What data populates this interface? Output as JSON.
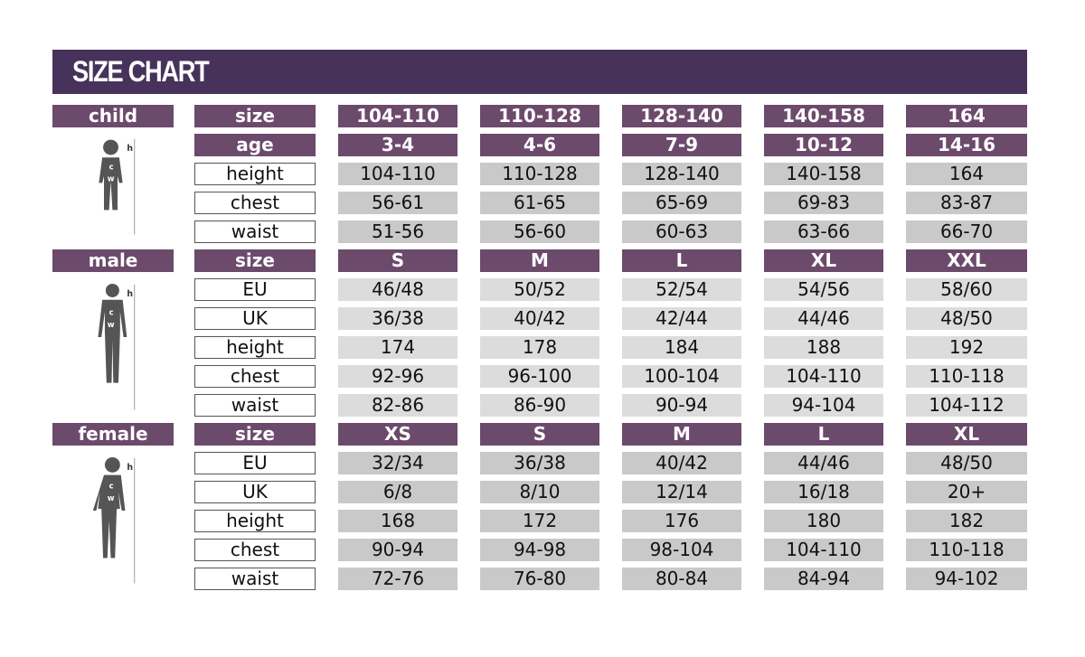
{
  "title": "SIZE CHART",
  "colors": {
    "header": "#46325a",
    "label": "#6c4a6c",
    "value": "#c9c9c9"
  },
  "sections": [
    {
      "name": "child",
      "figure": "child-silhouette-icon",
      "figure_labels": [
        "h",
        "c",
        "w"
      ],
      "header": [
        "size",
        "104-110",
        "110-128",
        "128-140",
        "140-158",
        "164"
      ],
      "rows": [
        {
          "label": "age",
          "values": [
            "3-4",
            "4-6",
            "7-9",
            "10-12",
            "14-16"
          ],
          "purple": true
        },
        {
          "label": "height",
          "values": [
            "104-110",
            "110-128",
            "128-140",
            "140-158",
            "164"
          ]
        },
        {
          "label": "chest",
          "values": [
            "56-61",
            "61-65",
            "65-69",
            "69-83",
            "83-87"
          ]
        },
        {
          "label": "waist",
          "values": [
            "51-56",
            "56-60",
            "60-63",
            "63-66",
            "66-70"
          ]
        }
      ]
    },
    {
      "name": "male",
      "figure": "male-silhouette-icon",
      "figure_labels": [
        "h",
        "c",
        "w"
      ],
      "header": [
        "size",
        "S",
        "M",
        "L",
        "XL",
        "XXL"
      ],
      "rows": [
        {
          "label": "EU",
          "values": [
            "46/48",
            "50/52",
            "52/54",
            "54/56",
            "58/60"
          ]
        },
        {
          "label": "UK",
          "values": [
            "36/38",
            "40/42",
            "42/44",
            "44/46",
            "48/50"
          ]
        },
        {
          "label": "height",
          "values": [
            "174",
            "178",
            "184",
            "188",
            "192"
          ]
        },
        {
          "label": "chest",
          "values": [
            "92-96",
            "96-100",
            "100-104",
            "104-110",
            "110-118"
          ]
        },
        {
          "label": "waist",
          "values": [
            "82-86",
            "86-90",
            "90-94",
            "94-104",
            "104-112"
          ]
        }
      ]
    },
    {
      "name": "female",
      "figure": "female-silhouette-icon",
      "figure_labels": [
        "h",
        "c",
        "w"
      ],
      "header": [
        "size",
        "XS",
        "S",
        "M",
        "L",
        "XL"
      ],
      "rows": [
        {
          "label": "EU",
          "values": [
            "32/34",
            "36/38",
            "40/42",
            "44/46",
            "48/50"
          ]
        },
        {
          "label": "UK",
          "values": [
            "6/8",
            "8/10",
            "12/14",
            "16/18",
            "20+"
          ]
        },
        {
          "label": "height",
          "values": [
            "168",
            "172",
            "176",
            "180",
            "182"
          ]
        },
        {
          "label": "chest",
          "values": [
            "90-94",
            "94-98",
            "98-104",
            "104-110",
            "110-118"
          ]
        },
        {
          "label": "waist",
          "values": [
            "72-76",
            "76-80",
            "80-84",
            "84-94",
            "94-102"
          ]
        }
      ]
    }
  ]
}
